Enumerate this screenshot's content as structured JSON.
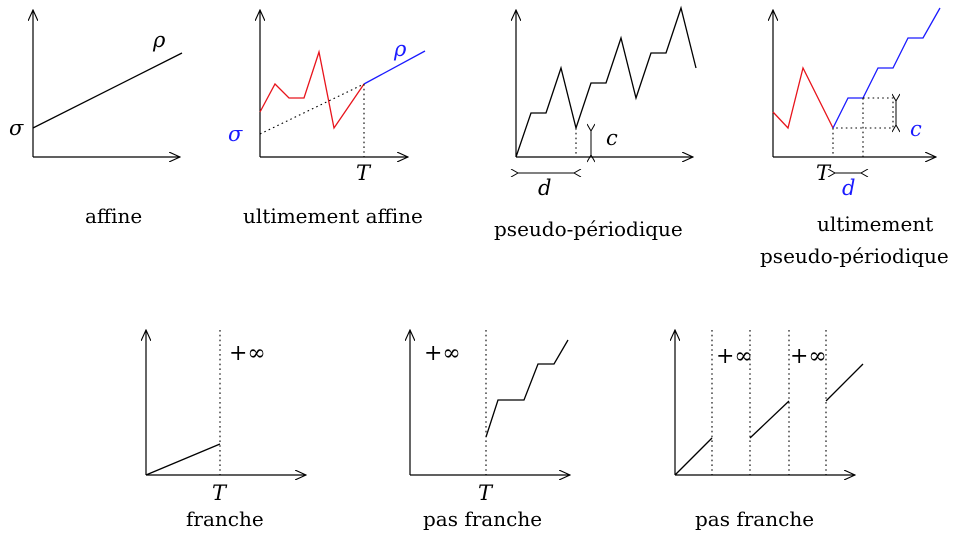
{
  "colors": {
    "prefix": "#e8141c",
    "periodic": "#1a1aff",
    "axis": "#000000"
  },
  "panels": {
    "affine": {
      "caption": "affine",
      "rho": "ρ",
      "sigma": "σ"
    },
    "ult_affine": {
      "caption": "ultimement affine",
      "rho": "ρ",
      "sigma": "σ",
      "T": "T"
    },
    "pseudo": {
      "caption": "pseudo-périodique",
      "c": "c",
      "d": "d"
    },
    "ult_pseudo": {
      "caption_line1": "ultimement",
      "caption_line2": "pseudo-périodique",
      "T": "T",
      "c": "c",
      "d": "d"
    },
    "franche": {
      "caption": "franche",
      "inf": "+∞",
      "T": "T"
    },
    "pas_franche1": {
      "caption": "pas franche",
      "inf": "+∞",
      "T": "T"
    },
    "pas_franche2": {
      "caption": "pas franche",
      "inf1": "+∞",
      "inf2": "+∞"
    }
  }
}
